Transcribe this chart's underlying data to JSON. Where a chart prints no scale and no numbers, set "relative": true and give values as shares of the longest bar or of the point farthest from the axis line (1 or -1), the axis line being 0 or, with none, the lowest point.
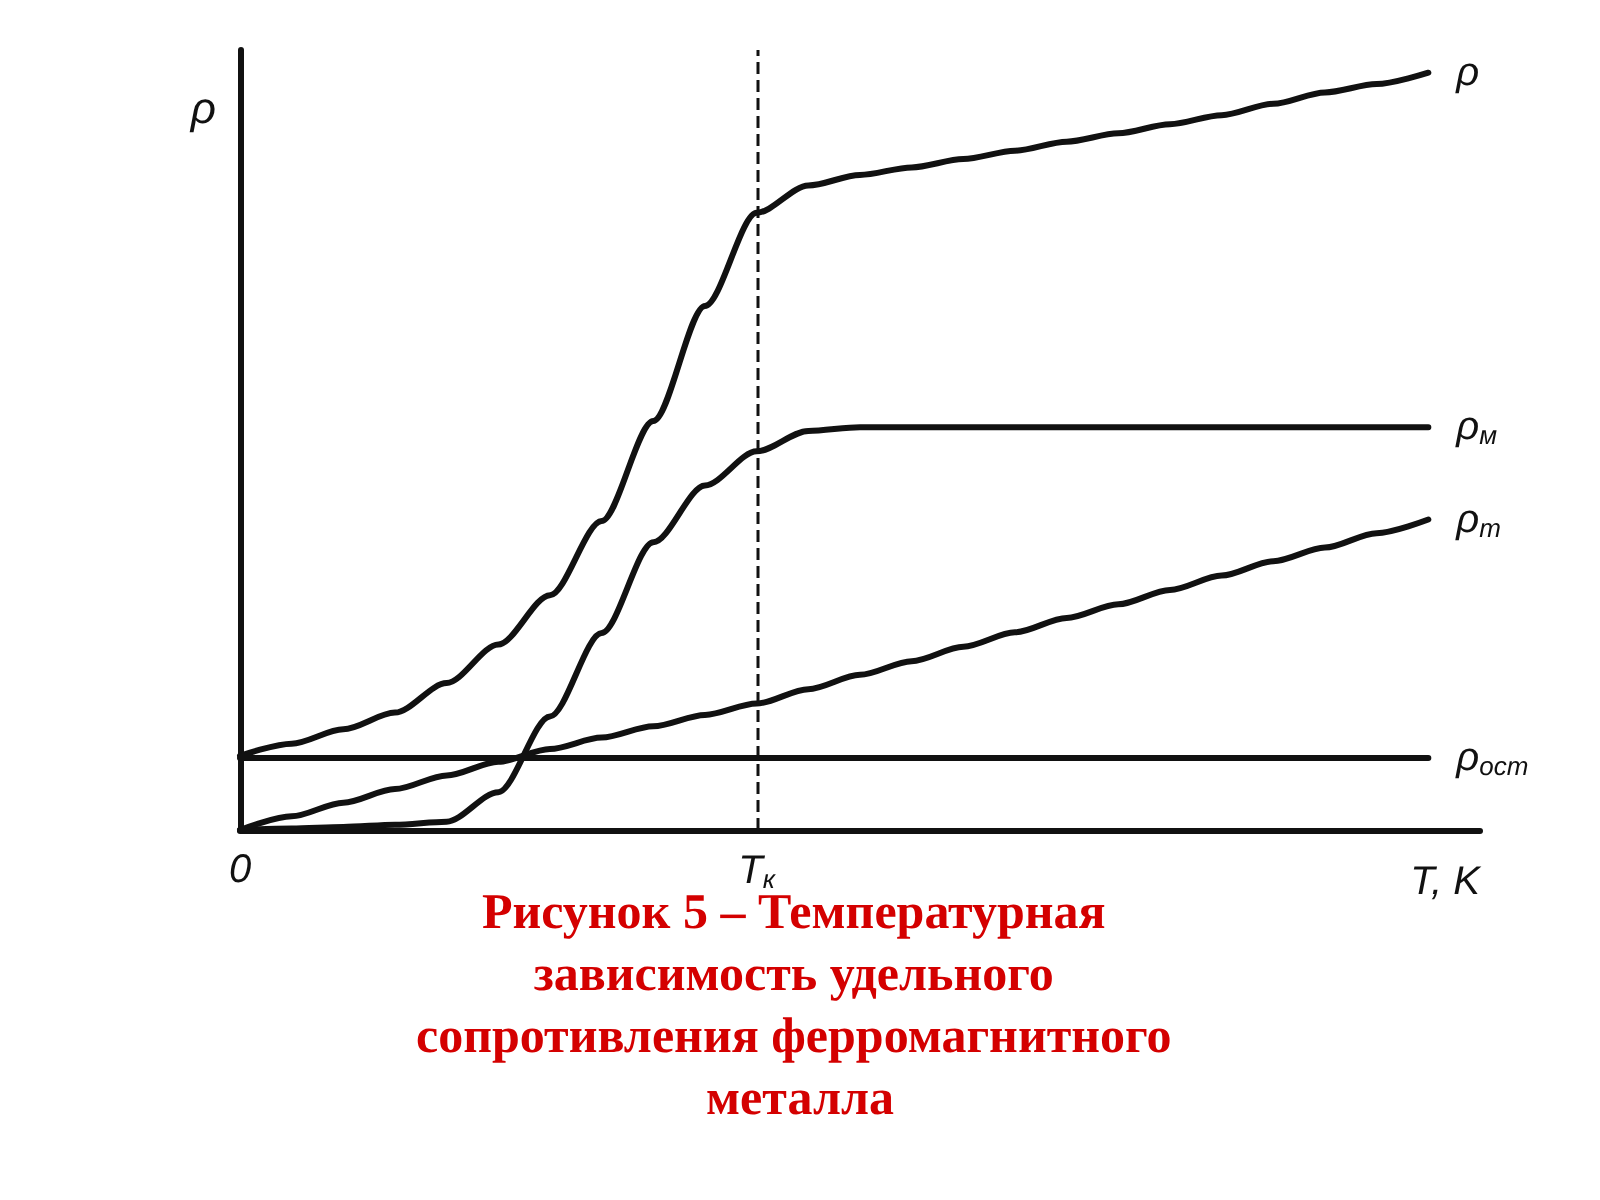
{
  "chart_data": {
    "type": "line",
    "relative": true,
    "title": "Рисунок 5 – Температурная зависимость удельного сопротивления ферромагнитного металла",
    "xlabel": "T, K",
    "ylabel": "ρ",
    "categories": [
      "0",
      null,
      null,
      null,
      null,
      null,
      null,
      null,
      null,
      null,
      "T$_{к}$",
      null,
      null,
      null,
      null,
      null,
      null,
      null,
      null,
      null,
      null,
      null,
      null,
      null,
      null
    ],
    "grid": false,
    "legend": false,
    "marker": "none",
    "line_style": "solid",
    "ref_lines": [
      {
        "axis": "x",
        "value": "T$_{к}$",
        "label": null,
        "color": "#111111",
        "line_style": "dashed"
      }
    ],
    "series": [
      {
        "name": "ρ",
        "color": "#111111",
        "values": [
          0.098,
          0.114,
          0.133,
          0.155,
          0.194,
          0.245,
          0.31,
          0.408,
          0.54,
          0.692,
          0.815,
          0.851,
          0.865,
          0.875,
          0.886,
          0.897,
          0.909,
          0.92,
          0.932,
          0.944,
          0.959,
          0.974,
          0.985,
          1.0,
          null
        ]
      },
      {
        "name": "ρ$_{м}$",
        "color": "#111111",
        "values": [
          0,
          0.002,
          0.004,
          0.007,
          0.011,
          0.05,
          0.15,
          0.26,
          0.38,
          0.455,
          0.5,
          0.527,
          0.532,
          0.532,
          0.532,
          0.532,
          0.532,
          0.532,
          0.532,
          0.532,
          0.532,
          0.532,
          0.532,
          0.532,
          null
        ]
      },
      {
        "name": "ρ$_{т}$",
        "color": "#111111",
        "values": [
          0,
          0.018,
          0.036,
          0.054,
          0.072,
          0.09,
          0.107,
          0.122,
          0.137,
          0.152,
          0.167,
          0.186,
          0.205,
          0.223,
          0.242,
          0.261,
          0.28,
          0.298,
          0.317,
          0.336,
          0.355,
          0.373,
          0.392,
          0.41,
          null
        ]
      },
      {
        "name": "ρ$_{ост}$",
        "color": "#111111",
        "values": [
          0.095,
          0.095,
          0.095,
          0.095,
          0.095,
          0.095,
          0.095,
          0.095,
          0.095,
          0.095,
          0.095,
          0.095,
          0.095,
          0.095,
          0.095,
          0.095,
          0.095,
          0.095,
          0.095,
          0.095,
          0.095,
          0.095,
          0.095,
          0.095,
          null
        ]
      }
    ]
  }
}
